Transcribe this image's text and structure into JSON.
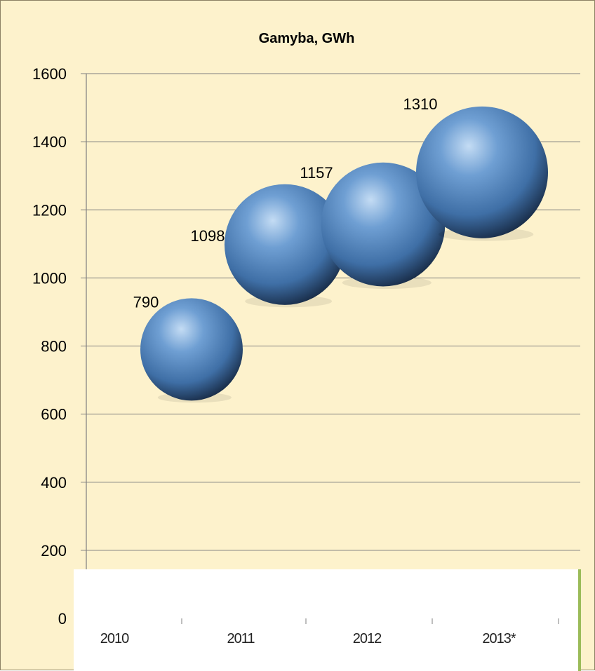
{
  "chart_data": {
    "type": "bubble",
    "title": "Gamyba, GWh",
    "categories": [
      "2010",
      "2011",
      "2012",
      "2013*"
    ],
    "values": [
      790,
      1098,
      1157,
      1310
    ],
    "data_labels": [
      "790",
      "1098",
      "1157",
      "1310"
    ],
    "ylim": [
      0,
      1600
    ],
    "yticks": [
      "0",
      "200",
      "400",
      "600",
      "800",
      "1000",
      "1200",
      "1400",
      "1600"
    ],
    "grid": true,
    "legend": "none",
    "colors": {
      "background": "#fdf2cc",
      "bubble_light": "#b9d6f2",
      "bubble_mid": "#4f81bd",
      "bubble_dark": "#14243c",
      "grid": "#7f7f7f",
      "category_band": "#ffffff",
      "accent_bar": "#9bbb59"
    }
  }
}
